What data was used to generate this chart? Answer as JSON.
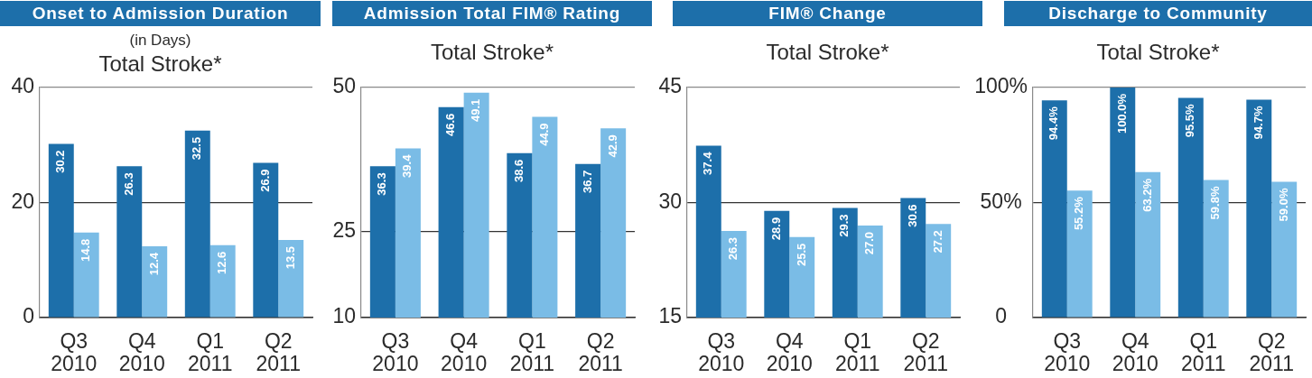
{
  "chart_data": [
    {
      "type": "bar",
      "title": "Onset to Admission Duration",
      "subtitle": "Total Stroke*",
      "ylabel": "(in Days)",
      "categories": [
        "Q3 2010",
        "Q4 2010",
        "Q1 2011",
        "Q2 2011"
      ],
      "series": [
        {
          "color": "#1d6faa",
          "values": [
            30.2,
            26.3,
            32.5,
            26.9
          ]
        },
        {
          "color": "#7abce6",
          "values": [
            14.8,
            12.4,
            12.6,
            13.5
          ]
        }
      ],
      "ylim": [
        0,
        40
      ],
      "yticks": [
        0,
        20,
        40
      ],
      "grid": "y",
      "data_labels": true
    },
    {
      "type": "bar",
      "title": "Admission Total FIM® Rating",
      "subtitle": "Total Stroke*",
      "categories": [
        "Q3 2010",
        "Q4 2010",
        "Q1 2011",
        "Q2 2011"
      ],
      "series": [
        {
          "color": "#1d6faa",
          "values": [
            36.3,
            46.6,
            38.6,
            36.7
          ]
        },
        {
          "color": "#7abce6",
          "values": [
            39.4,
            49.1,
            44.9,
            42.9
          ]
        }
      ],
      "ylim": [
        10,
        50
      ],
      "yticks": [
        10,
        25,
        50
      ],
      "grid": "y",
      "data_labels": true
    },
    {
      "type": "bar",
      "title": "FIM® Change",
      "subtitle": "Total Stroke*",
      "categories": [
        "Q3 2010",
        "Q4 2010",
        "Q1 2011",
        "Q2 2011"
      ],
      "series": [
        {
          "color": "#1d6faa",
          "values": [
            37.4,
            28.9,
            29.3,
            30.6
          ],
          "value_labels": [
            "37.4",
            "28.9",
            "29.3",
            "30.6"
          ]
        },
        {
          "color": "#7abce6",
          "values": [
            26.3,
            25.5,
            27.0,
            27.2
          ],
          "value_labels": [
            "26.3",
            "25.5",
            "27.0",
            "27.2"
          ]
        }
      ],
      "ylim": [
        15,
        45
      ],
      "yticks": [
        15,
        30,
        45
      ],
      "grid": "y"
    },
    {
      "type": "bar",
      "title": "Discharge to Community",
      "subtitle": "Total Stroke*",
      "categories": [
        "Q3 2010",
        "Q4 2010",
        "Q1 2011",
        "Q2 2011"
      ],
      "series": [
        {
          "color": "#1d6faa",
          "values": [
            94.4,
            100.0,
            95.5,
            94.7
          ],
          "value_labels": [
            "94.4%",
            "100.0%",
            "95.5%",
            "94.7%"
          ]
        },
        {
          "color": "#7abce6",
          "values": [
            55.2,
            63.2,
            59.8,
            59.0
          ],
          "value_labels": [
            "55.2%",
            "63.2%",
            "59.8%",
            "59.0%"
          ]
        }
      ],
      "ylim": [
        0,
        100
      ],
      "yticks": [
        0,
        {
          "value": 50,
          "label": "50%"
        },
        {
          "value": 100,
          "label": "100%"
        }
      ],
      "grid": "y"
    }
  ]
}
